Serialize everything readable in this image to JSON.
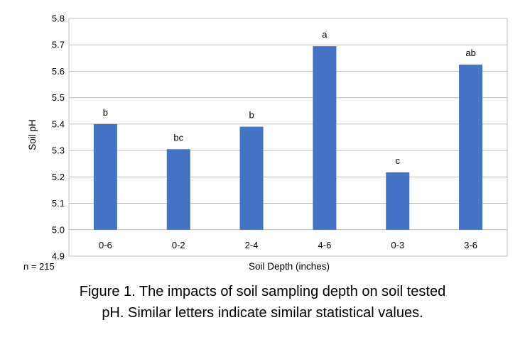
{
  "chart_data": {
    "type": "bar",
    "categories": [
      "0-6",
      "0-2",
      "2-4",
      "4-6",
      "0-3",
      "3-6"
    ],
    "values": [
      5.4,
      5.305,
      5.39,
      5.695,
      5.217,
      5.625
    ],
    "significance_letters": [
      "b",
      "bc",
      "b",
      "a",
      "c",
      "ab"
    ],
    "ylabel": "Soil pH",
    "xlabel": "Soil Depth (inches)",
    "ylim": [
      4.9,
      5.8
    ],
    "yticks": [
      "4.9",
      "5.0",
      "5.1",
      "5.2",
      "5.3",
      "5.4",
      "5.5",
      "5.6",
      "5.7",
      "5.8"
    ],
    "bar_baseline": 5.0,
    "grid": true,
    "bar_color": "#4472C4",
    "grid_color": "#BFBFBF"
  },
  "sample_note": "n = 215",
  "caption": {
    "line1": "Figure 1. The impacts of soil sampling depth on soil tested",
    "line2": "pH. Similar letters indicate similar statistical values."
  }
}
